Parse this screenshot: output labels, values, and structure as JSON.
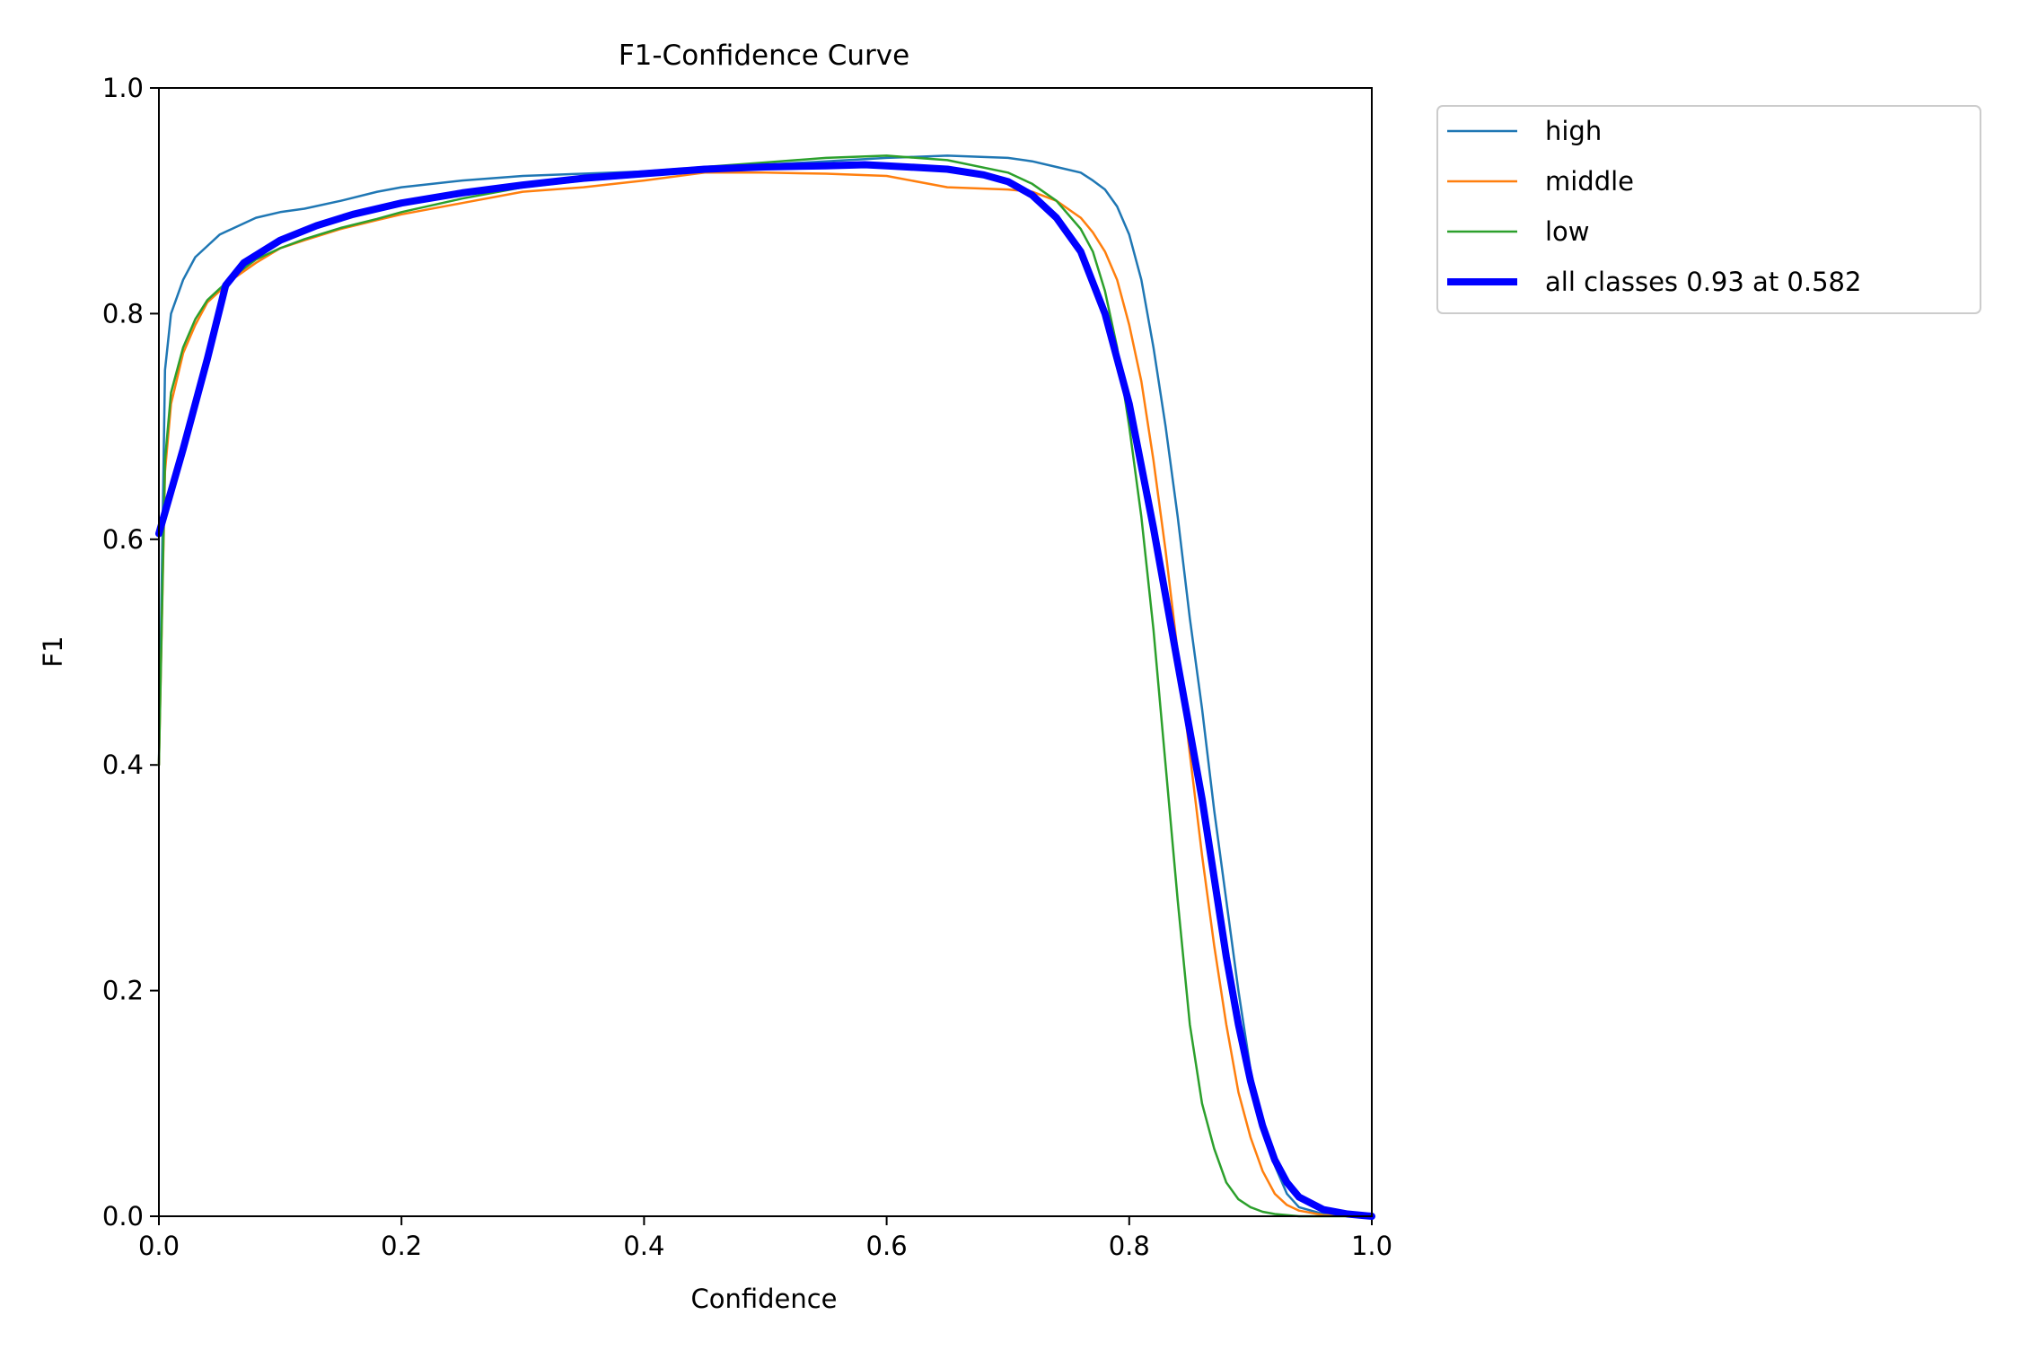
{
  "chart_data": {
    "type": "line",
    "title": "F1-Confidence Curve",
    "xlabel": "Confidence",
    "ylabel": "F1",
    "xlim": [
      0.0,
      1.0
    ],
    "ylim": [
      0.0,
      1.0
    ],
    "xticks": [
      0.0,
      0.2,
      0.4,
      0.6,
      0.8,
      1.0
    ],
    "xtick_labels": [
      "0.0",
      "0.2",
      "0.4",
      "0.6",
      "0.8",
      "1.0"
    ],
    "yticks": [
      0.0,
      0.2,
      0.4,
      0.6,
      0.8,
      1.0
    ],
    "ytick_labels": [
      "0.0",
      "0.2",
      "0.4",
      "0.6",
      "0.8",
      "1.0"
    ],
    "grid": false,
    "legend_position": "outside-top-right",
    "series": [
      {
        "name": "high",
        "color": "#1f77b4",
        "emphasis": false,
        "x": [
          0.0,
          0.005,
          0.01,
          0.02,
          0.03,
          0.04,
          0.05,
          0.06,
          0.08,
          0.1,
          0.12,
          0.15,
          0.18,
          0.2,
          0.25,
          0.3,
          0.35,
          0.4,
          0.45,
          0.5,
          0.55,
          0.6,
          0.65,
          0.7,
          0.72,
          0.74,
          0.76,
          0.77,
          0.78,
          0.79,
          0.8,
          0.81,
          0.82,
          0.83,
          0.84,
          0.85,
          0.86,
          0.87,
          0.88,
          0.89,
          0.9,
          0.91,
          0.92,
          0.93,
          0.94,
          0.96,
          1.0
        ],
        "y": [
          0.4,
          0.75,
          0.8,
          0.83,
          0.85,
          0.86,
          0.87,
          0.875,
          0.885,
          0.89,
          0.893,
          0.9,
          0.908,
          0.912,
          0.918,
          0.922,
          0.924,
          0.926,
          0.93,
          0.932,
          0.935,
          0.938,
          0.94,
          0.938,
          0.935,
          0.93,
          0.925,
          0.918,
          0.91,
          0.895,
          0.87,
          0.83,
          0.77,
          0.7,
          0.62,
          0.53,
          0.45,
          0.36,
          0.28,
          0.2,
          0.13,
          0.08,
          0.045,
          0.02,
          0.008,
          0.002,
          0.0
        ]
      },
      {
        "name": "middle",
        "color": "#ff7f0e",
        "emphasis": false,
        "x": [
          0.0,
          0.005,
          0.01,
          0.02,
          0.03,
          0.04,
          0.05,
          0.06,
          0.08,
          0.1,
          0.12,
          0.15,
          0.18,
          0.2,
          0.25,
          0.3,
          0.35,
          0.4,
          0.45,
          0.5,
          0.55,
          0.6,
          0.65,
          0.7,
          0.72,
          0.74,
          0.76,
          0.77,
          0.78,
          0.79,
          0.8,
          0.81,
          0.82,
          0.83,
          0.84,
          0.85,
          0.86,
          0.87,
          0.88,
          0.89,
          0.9,
          0.91,
          0.92,
          0.93,
          0.94,
          0.96,
          1.0
        ],
        "y": [
          0.4,
          0.66,
          0.72,
          0.765,
          0.79,
          0.81,
          0.82,
          0.83,
          0.845,
          0.858,
          0.865,
          0.875,
          0.883,
          0.888,
          0.898,
          0.908,
          0.912,
          0.918,
          0.925,
          0.925,
          0.924,
          0.922,
          0.912,
          0.91,
          0.908,
          0.9,
          0.885,
          0.872,
          0.855,
          0.83,
          0.79,
          0.74,
          0.67,
          0.59,
          0.5,
          0.41,
          0.32,
          0.24,
          0.17,
          0.11,
          0.07,
          0.04,
          0.02,
          0.01,
          0.005,
          0.001,
          0.0
        ]
      },
      {
        "name": "low",
        "color": "#2ca02c",
        "emphasis": false,
        "x": [
          0.0,
          0.005,
          0.01,
          0.02,
          0.03,
          0.04,
          0.05,
          0.06,
          0.08,
          0.1,
          0.12,
          0.15,
          0.18,
          0.2,
          0.25,
          0.3,
          0.35,
          0.4,
          0.45,
          0.5,
          0.55,
          0.6,
          0.65,
          0.7,
          0.72,
          0.74,
          0.76,
          0.77,
          0.78,
          0.79,
          0.8,
          0.81,
          0.82,
          0.83,
          0.84,
          0.85,
          0.86,
          0.87,
          0.88,
          0.89,
          0.9,
          0.91,
          0.92,
          0.93,
          0.94,
          0.96,
          1.0
        ],
        "y": [
          0.4,
          0.67,
          0.73,
          0.77,
          0.795,
          0.812,
          0.822,
          0.832,
          0.848,
          0.858,
          0.866,
          0.876,
          0.884,
          0.89,
          0.902,
          0.912,
          0.918,
          0.922,
          0.93,
          0.934,
          0.938,
          0.94,
          0.936,
          0.925,
          0.915,
          0.9,
          0.875,
          0.855,
          0.82,
          0.77,
          0.7,
          0.62,
          0.52,
          0.4,
          0.28,
          0.17,
          0.1,
          0.06,
          0.03,
          0.015,
          0.008,
          0.004,
          0.002,
          0.001,
          0.0,
          0.0,
          0.0
        ]
      },
      {
        "name": "all classes 0.93 at 0.582",
        "color": "#0000ff",
        "emphasis": true,
        "x": [
          0.0,
          0.02,
          0.04,
          0.055,
          0.07,
          0.1,
          0.13,
          0.16,
          0.2,
          0.25,
          0.3,
          0.35,
          0.4,
          0.45,
          0.5,
          0.55,
          0.582,
          0.6,
          0.65,
          0.68,
          0.7,
          0.72,
          0.74,
          0.76,
          0.78,
          0.8,
          0.82,
          0.84,
          0.86,
          0.87,
          0.88,
          0.89,
          0.9,
          0.91,
          0.92,
          0.93,
          0.94,
          0.96,
          0.98,
          1.0
        ],
        "y": [
          0.605,
          0.68,
          0.76,
          0.825,
          0.845,
          0.865,
          0.878,
          0.888,
          0.898,
          0.907,
          0.914,
          0.92,
          0.924,
          0.928,
          0.93,
          0.931,
          0.932,
          0.931,
          0.928,
          0.923,
          0.917,
          0.905,
          0.885,
          0.855,
          0.8,
          0.72,
          0.61,
          0.49,
          0.37,
          0.3,
          0.23,
          0.17,
          0.12,
          0.08,
          0.05,
          0.03,
          0.017,
          0.006,
          0.002,
          0.0
        ]
      }
    ]
  }
}
